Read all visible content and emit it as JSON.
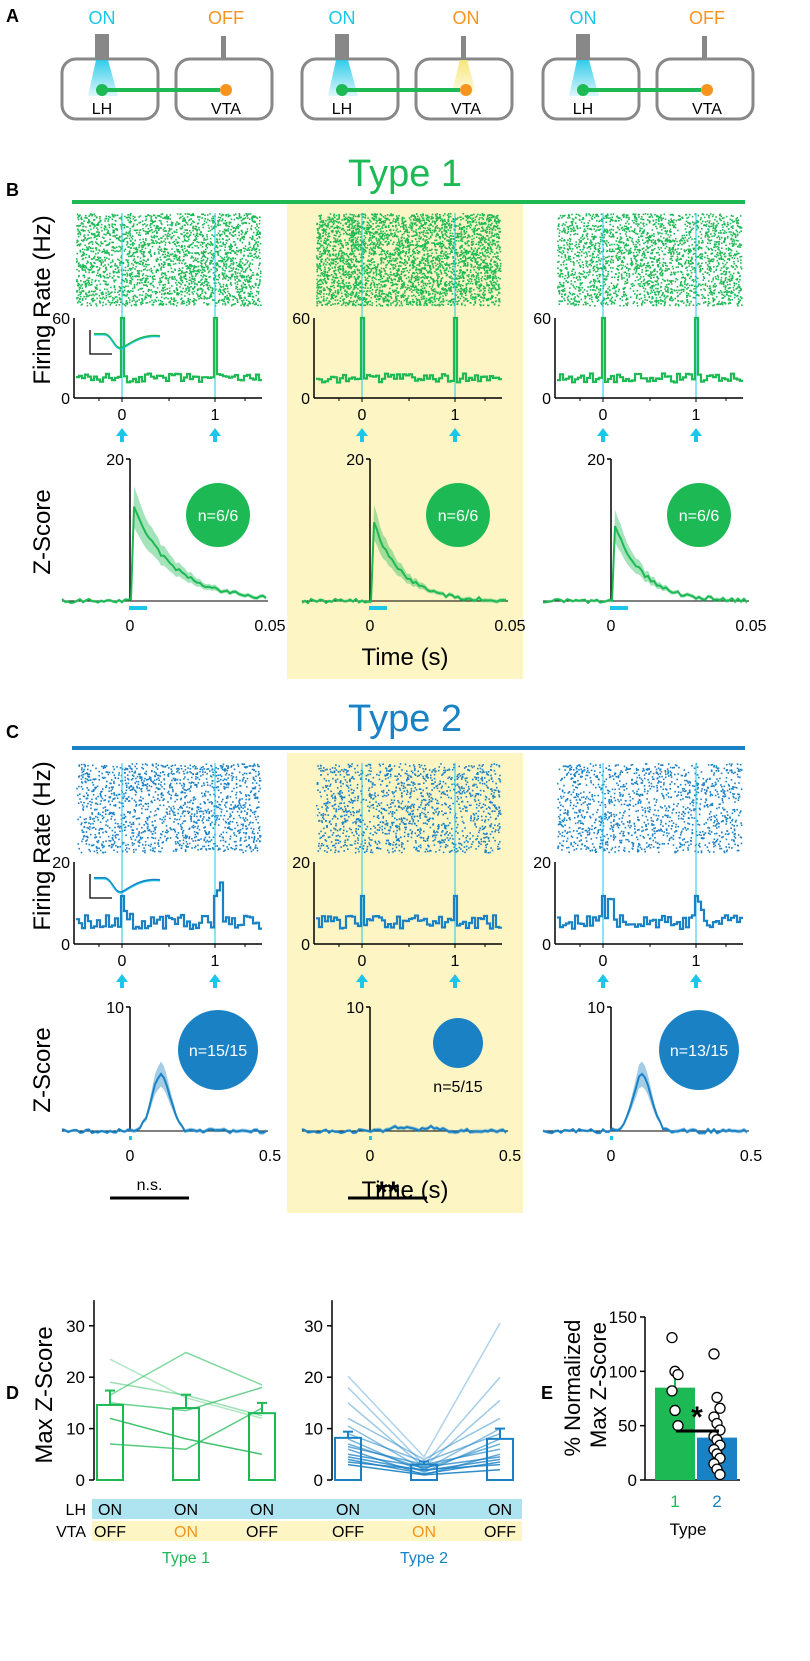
{
  "colors": {
    "green": "#1db954",
    "blue": "#1a82c4",
    "cyan": "#1bc6e8",
    "orange": "#f7941d",
    "yellow": "#fdf5c4",
    "gray": "#888888",
    "lightblue": "#aee3f0"
  },
  "panels": {
    "A": "A",
    "B": "B",
    "C": "C",
    "D": "D",
    "E": "E"
  },
  "panelA": [
    {
      "lh_state": "ON",
      "vta_state": "OFF",
      "lh_label": "LH",
      "vta_label": "VTA"
    },
    {
      "lh_state": "ON",
      "vta_state": "ON",
      "lh_label": "LH",
      "vta_label": "VTA"
    },
    {
      "lh_state": "ON",
      "vta_state": "OFF",
      "lh_label": "LH",
      "vta_label": "VTA"
    }
  ],
  "typeB": {
    "title": "Type 1",
    "firing_ylabel": "Firing Rate (Hz)",
    "z_ylabel": "Z-Score",
    "time_label": "Time (s)",
    "firing_yticks": [
      "0",
      "60"
    ],
    "firing_xticks": [
      "0",
      "1"
    ],
    "z_ytick": "20",
    "z_xticks": [
      "0",
      "0.05"
    ],
    "counts": [
      "n=6/6",
      "n=6/6",
      "n=6/6"
    ]
  },
  "typeC": {
    "title": "Type 2",
    "firing_ylabel": "Firing Rate (Hz)",
    "z_ylabel": "Z-Score",
    "time_label": "Time (s)",
    "firing_yticks": [
      "0",
      "20"
    ],
    "firing_xticks": [
      "0",
      "1"
    ],
    "z_ytick": "10",
    "z_xticks": [
      "0",
      "0.5"
    ],
    "counts": [
      "n=15/15",
      "n=5/15",
      "n=13/15"
    ]
  },
  "chart_data": [
    {
      "type": "bar",
      "panel": "D",
      "group": "Type 1",
      "ylabel": "Max Z-Score",
      "ylim": [
        0,
        35
      ],
      "yticks": [
        "0",
        "10",
        "20",
        "30"
      ],
      "categories": [
        "LH ON / VTA OFF",
        "LH ON / VTA ON",
        "LH ON / VTA OFF"
      ],
      "values": [
        14.6,
        14.0,
        13.0
      ],
      "errors": [
        2.8,
        2.6,
        2.0
      ],
      "lines": [
        [
          23.5,
          16.0,
          12.0
        ],
        [
          19.0,
          16.5,
          12.5
        ],
        [
          16.5,
          24.8,
          18.5
        ],
        [
          15.0,
          13.5,
          18.0
        ],
        [
          7.0,
          6.0,
          14.0
        ],
        [
          12.0,
          8.0,
          5.0
        ]
      ],
      "significance": "n.s.",
      "condition_rows": {
        "LH": [
          "ON",
          "ON",
          "ON"
        ],
        "VTA": [
          "OFF",
          "ON",
          "OFF"
        ]
      }
    },
    {
      "type": "bar",
      "panel": "D",
      "group": "Type 2",
      "ylabel": "Max Z-Score",
      "ylim": [
        0,
        35
      ],
      "yticks": [
        "0",
        "10",
        "20",
        "30"
      ],
      "categories": [
        "LH ON / VTA OFF",
        "LH ON / VTA ON",
        "LH ON / VTA OFF"
      ],
      "values": [
        8.2,
        3.0,
        8.0
      ],
      "errors": [
        1.2,
        0.6,
        2.0
      ],
      "lines": [
        [
          20.2,
          4.5,
          30.5
        ],
        [
          18.0,
          3.0,
          20.0
        ],
        [
          15.0,
          2.5,
          15.5
        ],
        [
          12.0,
          4.0,
          12.0
        ],
        [
          10.5,
          2.0,
          10.0
        ],
        [
          9.0,
          3.5,
          9.0
        ],
        [
          8.0,
          1.5,
          8.0
        ],
        [
          7.0,
          2.2,
          7.0
        ],
        [
          6.5,
          3.0,
          6.0
        ],
        [
          6.0,
          1.0,
          5.0
        ],
        [
          5.0,
          2.5,
          4.5
        ],
        [
          4.5,
          1.8,
          4.0
        ],
        [
          4.0,
          1.2,
          3.5
        ],
        [
          3.5,
          2.0,
          3.0
        ],
        [
          3.0,
          1.0,
          2.0
        ]
      ],
      "significance": "**",
      "condition_rows": {
        "LH": [
          "ON",
          "ON",
          "ON"
        ],
        "VTA": [
          "OFF",
          "ON",
          "OFF"
        ]
      }
    },
    {
      "type": "bar",
      "panel": "E",
      "title": "",
      "xlabel": "Type",
      "ylabel": "% Normalized Max Z-Score",
      "ylim": [
        0,
        150
      ],
      "yticks": [
        "0",
        "50",
        "100",
        "150"
      ],
      "categories": [
        "1",
        "2"
      ],
      "values": [
        85,
        39
      ],
      "errors": [
        8,
        6
      ],
      "points": [
        [
          131,
          100,
          97,
          82,
          64,
          50
        ],
        [
          116,
          76,
          66,
          58,
          52,
          46,
          40,
          37,
          32,
          28,
          24,
          20,
          15,
          10,
          5
        ]
      ],
      "significance": "*"
    }
  ],
  "labels": {
    "row_lh": "LH",
    "row_vta": "VTA",
    "group1": "Type 1",
    "group2": "Type 2",
    "e_xlabel": "Type"
  }
}
